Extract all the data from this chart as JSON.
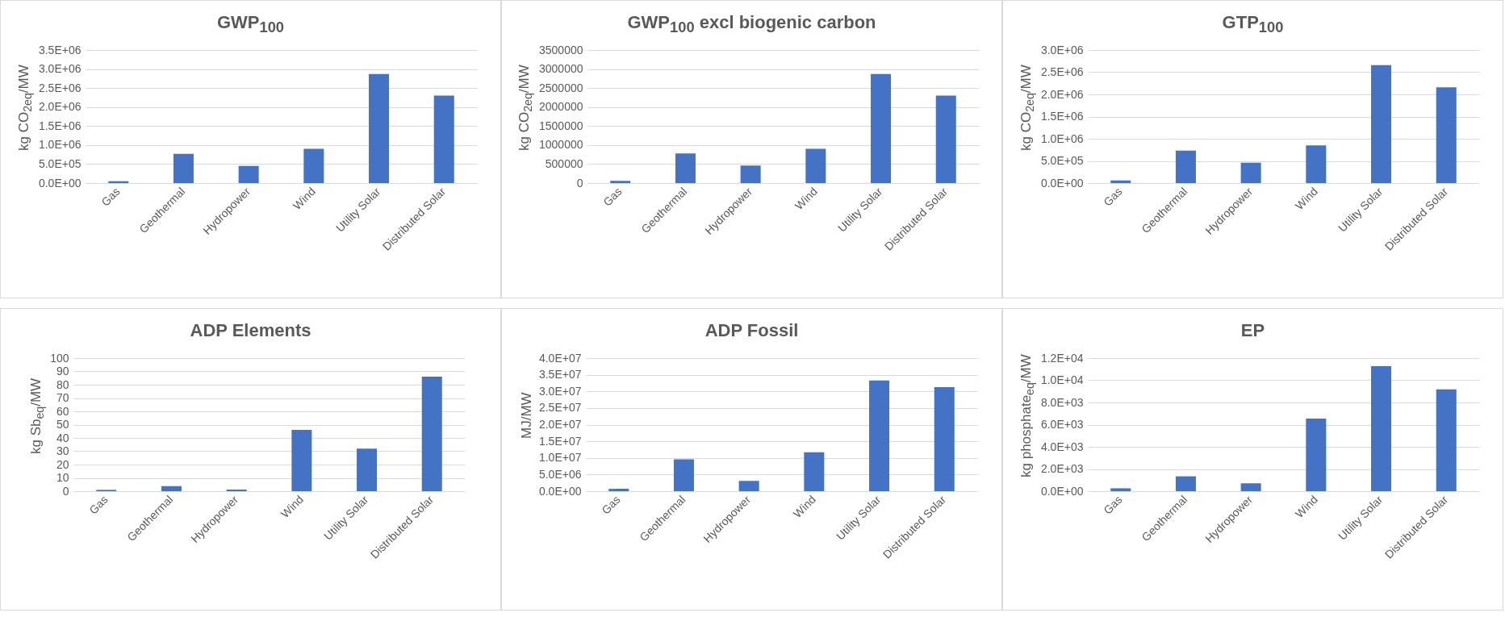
{
  "chart_data": [
    {
      "type": "bar",
      "title": "GWP$_{100}$",
      "ylabel": "kg CO$_{2eq}$/MW",
      "categories": [
        "Gas",
        "Geothermal",
        "Hydropower",
        "Wind",
        "Utility Solar",
        "Distributed Solar"
      ],
      "values": [
        50000,
        770000,
        450000,
        900000,
        2870000,
        2300000
      ],
      "color": "#4472c4",
      "ylim": [
        0,
        3500000
      ],
      "yticks": [
        {
          "value": 0,
          "label": "0.0E+00"
        },
        {
          "value": 500000,
          "label": "5.0E+05"
        },
        {
          "value": 1000000,
          "label": "1.0E+06"
        },
        {
          "value": 1500000,
          "label": "1.5E+06"
        },
        {
          "value": 2000000,
          "label": "2.0E+06"
        },
        {
          "value": 2500000,
          "label": "2.5E+06"
        },
        {
          "value": 3000000,
          "label": "3.0E+06"
        },
        {
          "value": 3500000,
          "label": "3.5E+06"
        }
      ],
      "grid": "y"
    },
    {
      "type": "bar",
      "title": "GWP$_{100}$ excl biogenic carbon",
      "ylabel": "kg CO$_{2eq}$/MW",
      "categories": [
        "Gas",
        "Geothermal",
        "Hydropower",
        "Wind",
        "Utility Solar",
        "Distributed Solar"
      ],
      "values": [
        60000,
        780000,
        460000,
        900000,
        2870000,
        2300000
      ],
      "color": "#4472c4",
      "ylim": [
        0,
        3500000
      ],
      "yticks": [
        0,
        500000,
        1000000,
        1500000,
        2000000,
        2500000,
        3000000,
        3500000
      ],
      "grid": "y"
    },
    {
      "type": "bar",
      "title": "GTP$_{100}$",
      "ylabel": "kg CO$_{2eq}$/MW",
      "categories": [
        "Gas",
        "Geothermal",
        "Hydropower",
        "Wind",
        "Utility Solar",
        "Distributed Solar"
      ],
      "values": [
        60000,
        730000,
        460000,
        850000,
        2660000,
        2160000
      ],
      "color": "#4472c4",
      "ylim": [
        0,
        3000000
      ],
      "yticks": [
        {
          "value": 0,
          "label": "0.0E+00"
        },
        {
          "value": 500000,
          "label": "5.0E+05"
        },
        {
          "value": 1000000,
          "label": "1.0E+06"
        },
        {
          "value": 1500000,
          "label": "1.5E+06"
        },
        {
          "value": 2000000,
          "label": "2.0E+06"
        },
        {
          "value": 2500000,
          "label": "2.5E+06"
        },
        {
          "value": 3000000,
          "label": "3.0E+06"
        }
      ],
      "grid": "y"
    },
    {
      "type": "bar",
      "title": "ADP Elements",
      "ylabel": "kg Sb$_{eq}$/MW",
      "categories": [
        "Gas",
        "Geothermal",
        "Hydropower",
        "Wind",
        "Utility Solar",
        "Distributed Solar"
      ],
      "values": [
        1,
        3.8,
        1.2,
        46,
        32,
        86
      ],
      "color": "#4472c4",
      "ylim": [
        0,
        100
      ],
      "yticks": [
        0,
        10,
        20,
        30,
        40,
        50,
        60,
        70,
        80,
        90,
        100
      ],
      "grid": "y"
    },
    {
      "type": "bar",
      "title": "ADP Fossil",
      "ylabel": "MJ/MW",
      "categories": [
        "Gas",
        "Geothermal",
        "Hydropower",
        "Wind",
        "Utility Solar",
        "Distributed Solar"
      ],
      "values": [
        700000,
        9600000,
        3100000,
        11700000,
        33300000,
        31300000
      ],
      "color": "#4472c4",
      "ylim": [
        0,
        40000000
      ],
      "yticks": [
        {
          "value": 0,
          "label": "0.0E+00"
        },
        {
          "value": 5000000,
          "label": "5.0E+06"
        },
        {
          "value": 10000000,
          "label": "1.0E+07"
        },
        {
          "value": 15000000,
          "label": "1.5E+07"
        },
        {
          "value": 20000000,
          "label": "2.0E+07"
        },
        {
          "value": 25000000,
          "label": "2.5E+07"
        },
        {
          "value": 30000000,
          "label": "3.0E+07"
        },
        {
          "value": 35000000,
          "label": "3.5E+07"
        },
        {
          "value": 40000000,
          "label": "4.0E+07"
        }
      ],
      "grid": "y"
    },
    {
      "type": "bar",
      "title": "EP",
      "ylabel": "kg phosphate$_{eq}$/MW",
      "categories": [
        "Gas",
        "Geothermal",
        "Hydropower",
        "Wind",
        "Utility Solar",
        "Distributed Solar"
      ],
      "values": [
        260,
        1340,
        710,
        6540,
        11270,
        9190
      ],
      "color": "#4472c4",
      "ylim": [
        0,
        12000
      ],
      "yticks": [
        {
          "value": 0,
          "label": "0.0E+00"
        },
        {
          "value": 2000,
          "label": "2.0E+03"
        },
        {
          "value": 4000,
          "label": "4.0E+03"
        },
        {
          "value": 6000,
          "label": "6.0E+03"
        },
        {
          "value": 8000,
          "label": "8.0E+03"
        },
        {
          "value": 10000,
          "label": "1.0E+04"
        },
        {
          "value": 12000,
          "label": "1.2E+04"
        }
      ],
      "grid": "y"
    }
  ]
}
